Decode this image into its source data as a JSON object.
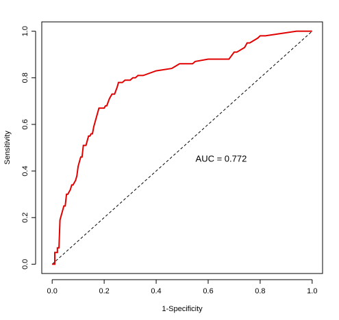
{
  "chart_data": {
    "type": "line",
    "title": "",
    "xlabel": "1-Specificity",
    "ylabel": "Sensitivity",
    "xlim": [
      -0.04,
      1.04
    ],
    "ylim": [
      -0.04,
      1.04
    ],
    "x_ticks": [
      0.0,
      0.2,
      0.4,
      0.6,
      0.8,
      1.0
    ],
    "x_tick_labels": [
      "0.0",
      "0.2",
      "0.4",
      "0.6",
      "0.8",
      "1.0"
    ],
    "y_ticks": [
      0.0,
      0.2,
      0.4,
      0.6,
      0.8,
      1.0
    ],
    "y_tick_labels": [
      "0.0",
      "0.2",
      "0.4",
      "0.6",
      "0.8",
      "1.0"
    ],
    "grid": false,
    "legend": "none",
    "annotation": "AUC = 0.772",
    "annotation_at": [
      0.65,
      0.44
    ],
    "series": [
      {
        "color": "#e00000",
        "style": "step",
        "x": [
          0.0,
          0.01,
          0.01,
          0.02,
          0.02,
          0.026,
          0.03,
          0.035,
          0.04,
          0.045,
          0.05,
          0.055,
          0.06,
          0.07,
          0.075,
          0.08,
          0.09,
          0.095,
          0.1,
          0.105,
          0.11,
          0.115,
          0.12,
          0.125,
          0.13,
          0.135,
          0.14,
          0.145,
          0.15,
          0.155,
          0.16,
          0.165,
          0.17,
          0.175,
          0.18,
          0.185,
          0.19,
          0.195,
          0.2,
          0.205,
          0.21,
          0.22,
          0.23,
          0.24,
          0.25,
          0.255,
          0.26,
          0.27,
          0.28,
          0.29,
          0.3,
          0.31,
          0.32,
          0.33,
          0.34,
          0.35,
          0.4,
          0.46,
          0.49,
          0.5,
          0.52,
          0.54,
          0.55,
          0.6,
          0.68,
          0.7,
          0.71,
          0.74,
          0.75,
          0.76,
          0.79,
          0.8,
          0.82,
          0.94,
          1.0
        ],
        "y": [
          0.0,
          0.0,
          0.05,
          0.05,
          0.07,
          0.07,
          0.19,
          0.21,
          0.23,
          0.25,
          0.25,
          0.3,
          0.3,
          0.32,
          0.34,
          0.34,
          0.36,
          0.38,
          0.42,
          0.44,
          0.46,
          0.46,
          0.51,
          0.51,
          0.51,
          0.53,
          0.55,
          0.55,
          0.56,
          0.56,
          0.59,
          0.61,
          0.63,
          0.65,
          0.67,
          0.67,
          0.67,
          0.67,
          0.67,
          0.68,
          0.68,
          0.71,
          0.73,
          0.73,
          0.76,
          0.78,
          0.78,
          0.78,
          0.79,
          0.79,
          0.79,
          0.8,
          0.8,
          0.81,
          0.81,
          0.81,
          0.83,
          0.84,
          0.86,
          0.86,
          0.86,
          0.86,
          0.87,
          0.88,
          0.88,
          0.91,
          0.91,
          0.93,
          0.95,
          0.95,
          0.97,
          0.98,
          0.98,
          1.0,
          1.0
        ]
      }
    ],
    "reference_line": {
      "x": [
        0,
        1
      ],
      "y": [
        0,
        1
      ],
      "color": "#000000",
      "style": "dashed"
    }
  }
}
